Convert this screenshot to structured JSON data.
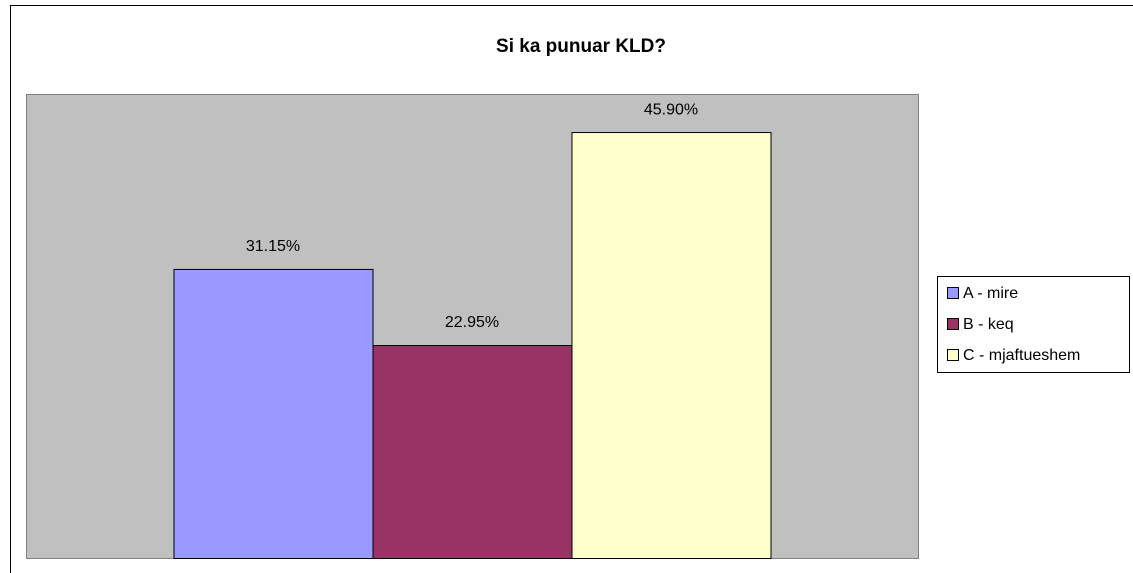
{
  "chart_data": {
    "type": "bar",
    "title": "Si ka punuar KLD?",
    "series": [
      {
        "name": "A - mire",
        "color": "#9999ff",
        "values": [
          31.15
        ],
        "value_labels": [
          "31.15%"
        ]
      },
      {
        "name": "B - keq",
        "color": "#993366",
        "values": [
          22.95
        ],
        "value_labels": [
          "22.95%"
        ]
      },
      {
        "name": "C - mjaftueshem",
        "color": "#ffffcc",
        "values": [
          45.9
        ],
        "value_labels": [
          "45.90%"
        ]
      }
    ],
    "ylim": [
      0,
      50
    ],
    "legend": "right"
  }
}
